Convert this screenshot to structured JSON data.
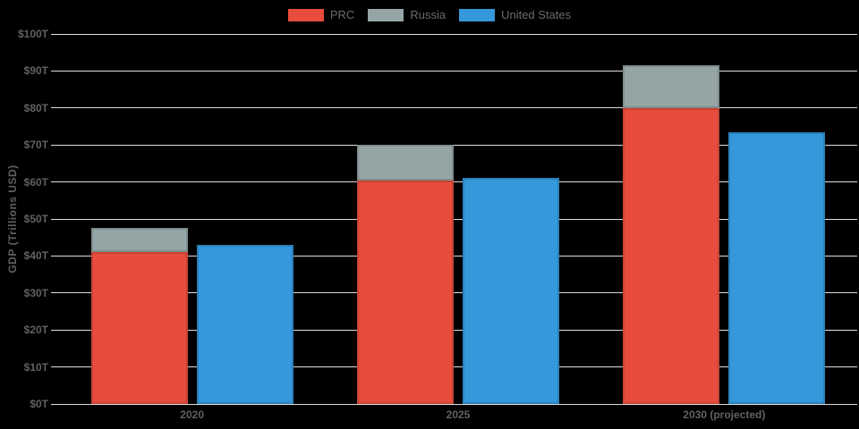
{
  "legend": {
    "items": [
      {
        "label": "PRC",
        "color": "#e74c3c"
      },
      {
        "label": "Russia",
        "color": "#95a5a6"
      },
      {
        "label": "United States",
        "color": "#3498db"
      }
    ]
  },
  "chart_data": {
    "type": "bar",
    "categories": [
      "2020",
      "2025",
      "2030 (projected)"
    ],
    "series": [
      {
        "name": "PRC",
        "stack": "prc-russia",
        "color": "#e74c3c",
        "border_color": "#c74334",
        "values": [
          41,
          60.5,
          80
        ]
      },
      {
        "name": "Russia",
        "stack": "prc-russia",
        "color": "#95a5a6",
        "border_color": "#7f8c8d",
        "values": [
          6.5,
          9.5,
          11.5
        ]
      },
      {
        "name": "United States",
        "stack": "us",
        "color": "#3498db",
        "border_color": "#2980b9",
        "values": [
          43,
          61,
          73.5
        ]
      }
    ],
    "title": "",
    "xlabel": "",
    "ylabel": "GDP (Trillions USD)",
    "ylim": [
      0,
      100
    ],
    "ytick_step": 10,
    "ytick_labels": [
      "$0T",
      "$10T",
      "$20T",
      "$30T",
      "$40T",
      "$50T",
      "$60T",
      "$70T",
      "$80T",
      "$90T",
      "$100T"
    ],
    "grid": true,
    "legend_position": "top",
    "background_color": "#000000",
    "grid_color": "#dedede",
    "tick_color": "#616161"
  }
}
